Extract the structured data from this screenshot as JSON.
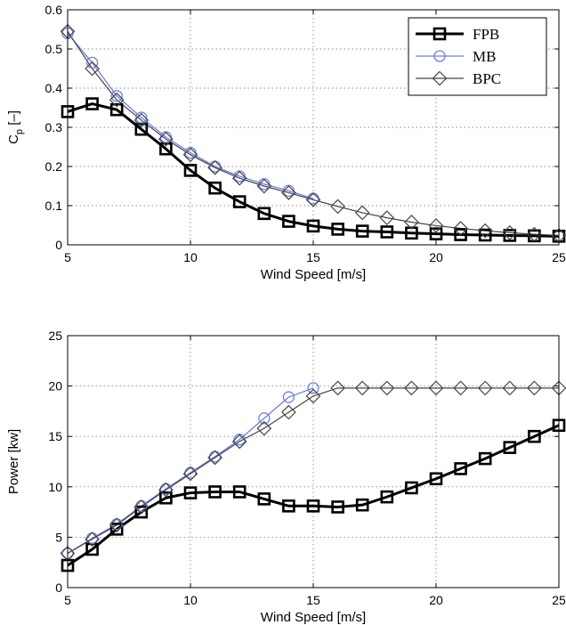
{
  "chart_data": [
    {
      "type": "line",
      "xlabel": "Wind Speed [m/s]",
      "ylabel_main": "C",
      "ylabel_sub": "p",
      "ylabel_unit": "[–]",
      "xlim": [
        5,
        25
      ],
      "ylim": [
        0,
        0.6
      ],
      "xticks": [
        5,
        10,
        15,
        20,
        25
      ],
      "xtick_labels": [
        "5",
        "10",
        "15",
        "20",
        "25"
      ],
      "yticks": [
        0,
        0.1,
        0.2,
        0.3,
        0.4,
        0.5,
        0.6
      ],
      "ytick_labels": [
        "0",
        "0.1",
        "0.2",
        "0.3",
        "0.4",
        "0.5",
        "0.6"
      ],
      "grid": true,
      "legend_position": "top-right",
      "series": [
        {
          "name": "FPB",
          "color": "#000000",
          "marker": "square",
          "x": [
            5,
            6,
            7,
            8,
            9,
            10,
            11,
            12,
            13,
            14,
            15,
            16,
            17,
            18,
            19,
            20,
            21,
            22,
            23,
            24,
            25
          ],
          "values": [
            0.34,
            0.36,
            0.345,
            0.295,
            0.245,
            0.19,
            0.145,
            0.11,
            0.08,
            0.06,
            0.048,
            0.04,
            0.035,
            0.033,
            0.03,
            0.028,
            0.026,
            0.025,
            0.024,
            0.023,
            0.022
          ]
        },
        {
          "name": "MB",
          "color": "#6f7fd8",
          "marker": "circle",
          "x": [
            5,
            6,
            7,
            8,
            9,
            10,
            11,
            12,
            13,
            14,
            15
          ],
          "values": [
            0.54,
            0.465,
            0.38,
            0.325,
            0.275,
            0.235,
            0.2,
            0.175,
            0.155,
            0.138,
            0.118
          ]
        },
        {
          "name": "BPC",
          "color": "#444444",
          "marker": "diamond",
          "x": [
            5,
            6,
            7,
            8,
            9,
            10,
            11,
            12,
            13,
            14,
            15,
            16,
            17,
            18,
            19,
            20,
            21,
            22,
            23,
            24,
            25
          ],
          "values": [
            0.545,
            0.45,
            0.37,
            0.318,
            0.27,
            0.23,
            0.197,
            0.17,
            0.15,
            0.133,
            0.115,
            0.098,
            0.082,
            0.069,
            0.058,
            0.049,
            0.042,
            0.036,
            0.031,
            0.027,
            0.024
          ]
        }
      ]
    },
    {
      "type": "line",
      "xlabel": "Wind Speed [m/s]",
      "ylabel": "Power [kw]",
      "xlim": [
        5,
        25
      ],
      "ylim": [
        0,
        25
      ],
      "xticks": [
        5,
        10,
        15,
        20,
        25
      ],
      "xtick_labels": [
        "5",
        "10",
        "15",
        "20",
        "25"
      ],
      "yticks": [
        0,
        5,
        10,
        15,
        20,
        25
      ],
      "ytick_labels": [
        "0",
        "5",
        "10",
        "15",
        "20",
        "25"
      ],
      "grid": true,
      "series": [
        {
          "name": "FPB",
          "color": "#000000",
          "marker": "square",
          "x": [
            5,
            6,
            7,
            8,
            9,
            10,
            11,
            12,
            13,
            14,
            15,
            16,
            17,
            18,
            19,
            20,
            21,
            22,
            23,
            24,
            25
          ],
          "values": [
            2.2,
            3.8,
            5.8,
            7.5,
            8.9,
            9.4,
            9.5,
            9.5,
            8.8,
            8.1,
            8.1,
            8.0,
            8.2,
            9.0,
            9.9,
            10.8,
            11.8,
            12.8,
            13.9,
            15.0,
            16.1
          ]
        },
        {
          "name": "MB",
          "color": "#6f7fd8",
          "marker": "circle",
          "x": [
            5,
            6,
            7,
            8,
            9,
            10,
            11,
            12,
            13,
            14,
            15
          ],
          "values": [
            3.4,
            4.9,
            6.3,
            8.1,
            9.8,
            11.4,
            13.0,
            14.7,
            16.8,
            18.9,
            19.8
          ]
        },
        {
          "name": "BPC",
          "color": "#444444",
          "marker": "diamond",
          "x": [
            5,
            6,
            7,
            8,
            9,
            10,
            11,
            12,
            13,
            14,
            15,
            16,
            17,
            18,
            19,
            20,
            21,
            22,
            23,
            24,
            25
          ],
          "values": [
            3.4,
            4.8,
            6.2,
            8.0,
            9.7,
            11.3,
            12.9,
            14.5,
            15.8,
            17.4,
            19.0,
            19.8,
            19.8,
            19.8,
            19.8,
            19.8,
            19.8,
            19.8,
            19.8,
            19.8,
            19.8
          ]
        }
      ]
    }
  ]
}
